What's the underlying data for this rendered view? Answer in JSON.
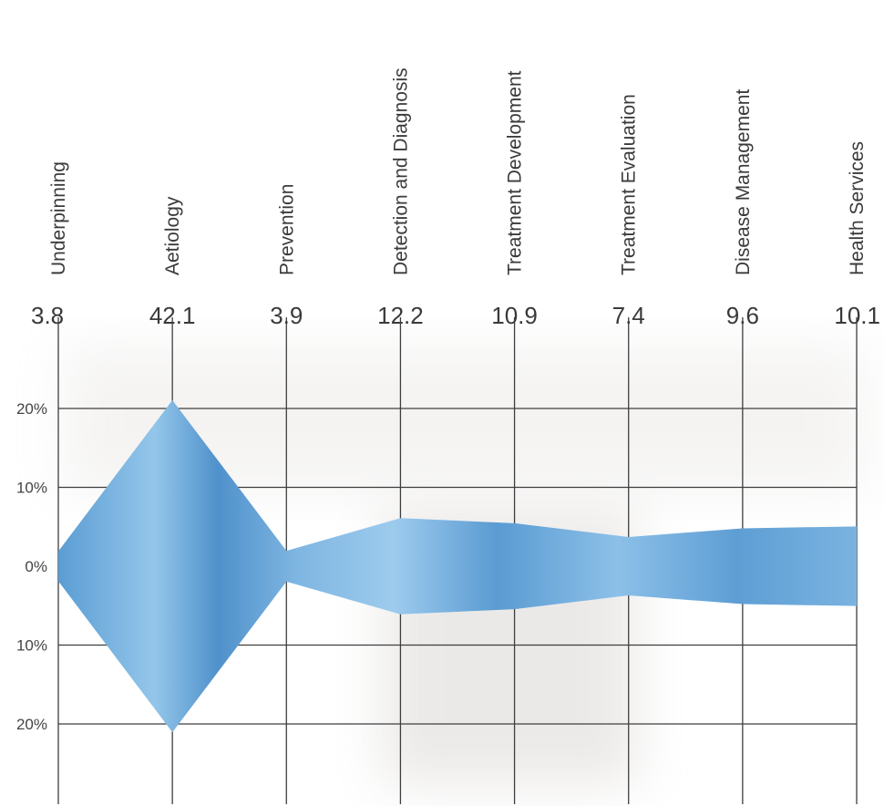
{
  "chart_data": {
    "type": "area",
    "categories": [
      "Underpinning",
      "Aetiology",
      "Prevention",
      "Detection and Diagnosis",
      "Treatment Development",
      "Treatment Evaluation",
      "Disease Management",
      "Health Services"
    ],
    "values": [
      3.8,
      42.1,
      3.9,
      12.2,
      10.9,
      7.4,
      9.6,
      10.1
    ],
    "value_labels": [
      "3.8",
      "42.1",
      "3.9",
      "12.2",
      "10.9",
      "7.4",
      "9.6",
      "10.1"
    ],
    "y_ticks": [
      {
        "value": 20,
        "label": "20%"
      },
      {
        "value": 10,
        "label": "10%"
      },
      {
        "value": 0,
        "label": "0%"
      },
      {
        "value": -10,
        "label": "10%"
      },
      {
        "value": -20,
        "label": "20%"
      }
    ],
    "ylim": [
      -30,
      27
    ],
    "grid": true,
    "colors": {
      "fill_mid": "#8fc3e8",
      "fill_edge": "#4a8fc9",
      "grid": "#3e3e3e",
      "shadow": "#c8c2bd"
    }
  }
}
